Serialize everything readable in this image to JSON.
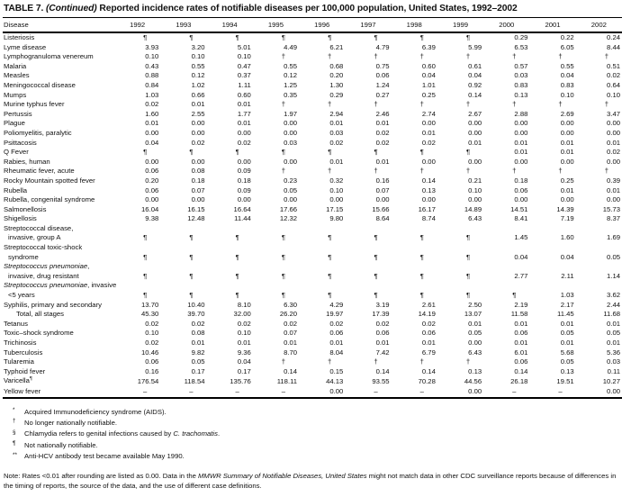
{
  "title": {
    "label": "TABLE 7. ",
    "continued": "(Continued) ",
    "rest": "Reported incidence rates of notifiable diseases per 100,000 population, United States, 1992–2002"
  },
  "table": {
    "disease_header": "Disease",
    "years": [
      "1992",
      "1993",
      "1994",
      "1995",
      "1996",
      "1997",
      "1998",
      "1999",
      "2000",
      "2001",
      "2002"
    ],
    "rows": [
      {
        "lines": [
          [
            {
              "t": "Listeriosis"
            }
          ]
        ],
        "values": [
          "¶",
          "¶",
          "¶",
          "¶",
          "¶",
          "¶",
          "¶",
          "¶",
          "0.29",
          "0.22",
          "0.24"
        ]
      },
      {
        "lines": [
          [
            {
              "t": "Lyme disease"
            }
          ]
        ],
        "values": [
          "3.93",
          "3.20",
          "5.01",
          "4.49",
          "6.21",
          "4.79",
          "6.39",
          "5.99",
          "6.53",
          "6.05",
          "8.44"
        ]
      },
      {
        "lines": [
          [
            {
              "t": "Lymphogranuloma venereum"
            }
          ]
        ],
        "values": [
          "0.10",
          "0.10",
          "0.10",
          "†",
          "†",
          "†",
          "†",
          "†",
          "†",
          "†",
          "†"
        ]
      },
      {
        "lines": [
          [
            {
              "t": "Malaria"
            }
          ]
        ],
        "values": [
          "0.43",
          "0.55",
          "0.47",
          "0.55",
          "0.68",
          "0.75",
          "0.60",
          "0.61",
          "0.57",
          "0.55",
          "0.51"
        ]
      },
      {
        "lines": [
          [
            {
              "t": "Measles"
            }
          ]
        ],
        "values": [
          "0.88",
          "0.12",
          "0.37",
          "0.12",
          "0.20",
          "0.06",
          "0.04",
          "0.04",
          "0.03",
          "0.04",
          "0.02"
        ]
      },
      {
        "lines": [
          [
            {
              "t": "Meningococcal disease"
            }
          ]
        ],
        "values": [
          "0.84",
          "1.02",
          "1.11",
          "1.25",
          "1.30",
          "1.24",
          "1.01",
          "0.92",
          "0.83",
          "0.83",
          "0.64"
        ]
      },
      {
        "lines": [
          [
            {
              "t": "Mumps"
            }
          ]
        ],
        "values": [
          "1.03",
          "0.66",
          "0.60",
          "0.35",
          "0.29",
          "0.27",
          "0.25",
          "0.14",
          "0.13",
          "0.10",
          "0.10"
        ]
      },
      {
        "lines": [
          [
            {
              "t": "Murine typhus fever"
            }
          ]
        ],
        "values": [
          "0.02",
          "0.01",
          "0.01",
          "†",
          "†",
          "†",
          "†",
          "†",
          "†",
          "†",
          "†"
        ]
      },
      {
        "lines": [
          [
            {
              "t": "Pertussis"
            }
          ]
        ],
        "values": [
          "1.60",
          "2.55",
          "1.77",
          "1.97",
          "2.94",
          "2.46",
          "2.74",
          "2.67",
          "2.88",
          "2.69",
          "3.47"
        ]
      },
      {
        "lines": [
          [
            {
              "t": "Plague"
            }
          ]
        ],
        "values": [
          "0.01",
          "0.00",
          "0.01",
          "0.00",
          "0.01",
          "0.01",
          "0.00",
          "0.00",
          "0.00",
          "0.00",
          "0.00"
        ]
      },
      {
        "lines": [
          [
            {
              "t": "Poliomyelitis, paralytic"
            }
          ]
        ],
        "values": [
          "0.00",
          "0.00",
          "0.00",
          "0.00",
          "0.03",
          "0.02",
          "0.01",
          "0.00",
          "0.00",
          "0.00",
          "0.00"
        ]
      },
      {
        "lines": [
          [
            {
              "t": "Psittacosis"
            }
          ]
        ],
        "values": [
          "0.04",
          "0.02",
          "0.02",
          "0.03",
          "0.02",
          "0.02",
          "0.02",
          "0.01",
          "0.01",
          "0.01",
          "0.01"
        ]
      },
      {
        "lines": [
          [
            {
              "t": "Q Fever"
            }
          ]
        ],
        "values": [
          "¶",
          "¶",
          "¶",
          "¶",
          "¶",
          "¶",
          "¶",
          "¶",
          "0.01",
          "0.01",
          "0.02"
        ]
      },
      {
        "lines": [
          [
            {
              "t": "Rabies, human"
            }
          ]
        ],
        "values": [
          "0.00",
          "0.00",
          "0.00",
          "0.00",
          "0.01",
          "0.01",
          "0.00",
          "0.00",
          "0.00",
          "0.00",
          "0.00"
        ]
      },
      {
        "lines": [
          [
            {
              "t": "Rheumatic fever, acute"
            }
          ]
        ],
        "values": [
          "0.06",
          "0.08",
          "0.09",
          "†",
          "†",
          "†",
          "†",
          "†",
          "†",
          "†",
          "†"
        ]
      },
      {
        "lines": [
          [
            {
              "t": "Rocky Mountain spotted fever"
            }
          ]
        ],
        "values": [
          "0.20",
          "0.18",
          "0.18",
          "0.23",
          "0.32",
          "0.16",
          "0.14",
          "0.21",
          "0.18",
          "0.25",
          "0.39"
        ]
      },
      {
        "lines": [
          [
            {
              "t": "Rubella"
            }
          ]
        ],
        "values": [
          "0.06",
          "0.07",
          "0.09",
          "0.05",
          "0.10",
          "0.07",
          "0.13",
          "0.10",
          "0.06",
          "0.01",
          "0.01"
        ]
      },
      {
        "lines": [
          [
            {
              "t": "Rubella, congenital syndrome"
            }
          ]
        ],
        "values": [
          "0.00",
          "0.00",
          "0.00",
          "0.00",
          "0.00",
          "0.00",
          "0.00",
          "0.00",
          "0.00",
          "0.00",
          "0.00"
        ]
      },
      {
        "lines": [
          [
            {
              "t": "Salmonellosis"
            }
          ]
        ],
        "values": [
          "16.04",
          "16.15",
          "16.64",
          "17.66",
          "17.15",
          "15.66",
          "16.17",
          "14.89",
          "14.51",
          "14.39",
          "15.73"
        ]
      },
      {
        "lines": [
          [
            {
              "t": "Shigellosis"
            }
          ]
        ],
        "values": [
          "9.38",
          "12.48",
          "11.44",
          "12.32",
          "9.80",
          "8.64",
          "8.74",
          "6.43",
          "8.41",
          "7.19",
          "8.37"
        ]
      },
      {
        "lines": [
          [
            {
              "t": "Streptococcal disease,"
            }
          ],
          [
            {
              "t": "invasive, group A"
            }
          ]
        ],
        "values": [
          "¶",
          "¶",
          "¶",
          "¶",
          "¶",
          "¶",
          "¶",
          "¶",
          "1.45",
          "1.60",
          "1.69"
        ]
      },
      {
        "lines": [
          [
            {
              "t": "Streptococcal toxic-shock"
            }
          ],
          [
            {
              "t": "syndrome"
            }
          ]
        ],
        "values": [
          "¶",
          "¶",
          "¶",
          "¶",
          "¶",
          "¶",
          "¶",
          "¶",
          "0.04",
          "0.04",
          "0.05"
        ]
      },
      {
        "lines": [
          [
            {
              "t": "Streptococcus pneumoniae",
              "i": true
            },
            {
              "t": ","
            }
          ],
          [
            {
              "t": "invasive, drug resistant"
            }
          ]
        ],
        "values": [
          "¶",
          "¶",
          "¶",
          "¶",
          "¶",
          "¶",
          "¶",
          "¶",
          "2.77",
          "2.11",
          "1.14"
        ]
      },
      {
        "lines": [
          [
            {
              "t": "Streptococcus pneumoniae",
              "i": true
            },
            {
              "t": ", invasive"
            }
          ],
          [
            {
              "t": "<5 years"
            }
          ]
        ],
        "values": [
          "¶",
          "¶",
          "¶",
          "¶",
          "¶",
          "¶",
          "¶",
          "¶",
          "¶",
          "1.03",
          "3.62"
        ]
      },
      {
        "lines": [
          [
            {
              "t": "Syphilis, primary and secondary"
            }
          ]
        ],
        "values": [
          "13.70",
          "10.40",
          "8.10",
          "6.30",
          "4.29",
          "3.19",
          "2.61",
          "2.50",
          "2.19",
          "2.17",
          "2.44"
        ]
      },
      {
        "lines": [
          [
            {
              "t": "Total, all stages"
            }
          ]
        ],
        "indent": true,
        "values": [
          "45.30",
          "39.70",
          "32.00",
          "26.20",
          "19.97",
          "17.39",
          "14.19",
          "13.07",
          "11.58",
          "11.45",
          "11.68"
        ]
      },
      {
        "lines": [
          [
            {
              "t": "Tetanus"
            }
          ]
        ],
        "values": [
          "0.02",
          "0.02",
          "0.02",
          "0.02",
          "0.02",
          "0.02",
          "0.02",
          "0.01",
          "0.01",
          "0.01",
          "0.01"
        ]
      },
      {
        "lines": [
          [
            {
              "t": "Toxic–shock syndrome"
            }
          ]
        ],
        "values": [
          "0.10",
          "0.08",
          "0.10",
          "0.07",
          "0.06",
          "0.06",
          "0.06",
          "0.05",
          "0.06",
          "0.05",
          "0.05"
        ]
      },
      {
        "lines": [
          [
            {
              "t": "Trichinosis"
            }
          ]
        ],
        "values": [
          "0.02",
          "0.01",
          "0.01",
          "0.01",
          "0.01",
          "0.01",
          "0.01",
          "0.00",
          "0.01",
          "0.01",
          "0.01"
        ]
      },
      {
        "lines": [
          [
            {
              "t": "Tuberculosis"
            }
          ]
        ],
        "values": [
          "10.46",
          "9.82",
          "9.36",
          "8.70",
          "8.04",
          "7.42",
          "6.79",
          "6.43",
          "6.01",
          "5.68",
          "5.36"
        ]
      },
      {
        "lines": [
          [
            {
              "t": "Tularemia"
            }
          ]
        ],
        "values": [
          "0.06",
          "0.05",
          "0.04",
          "†",
          "†",
          "†",
          "†",
          "†",
          "0.06",
          "0.05",
          "0.03"
        ]
      },
      {
        "lines": [
          [
            {
              "t": "Typhoid fever"
            }
          ]
        ],
        "values": [
          "0.16",
          "0.17",
          "0.17",
          "0.14",
          "0.15",
          "0.14",
          "0.14",
          "0.13",
          "0.14",
          "0.13",
          "0.11"
        ]
      },
      {
        "lines": [
          [
            {
              "t": "Varicella"
            },
            {
              "t": "¶",
              "sup": true
            }
          ]
        ],
        "values": [
          "176.54",
          "118.54",
          "135.76",
          "118.11",
          "44.13",
          "93.55",
          "70.28",
          "44.56",
          "26.18",
          "19.51",
          "10.27"
        ]
      },
      {
        "lines": [
          [
            {
              "t": "Yellow fever"
            }
          ]
        ],
        "values": [
          "–",
          "–",
          "–",
          "–",
          "0.00",
          "–",
          "–",
          "0.00",
          "–",
          "–",
          "0.00"
        ]
      }
    ]
  },
  "footnotes": [
    {
      "marker": "*",
      "segments": [
        {
          "t": "Acquired Immunodeficiency syndrome (AIDS)."
        }
      ]
    },
    {
      "marker": "†",
      "segments": [
        {
          "t": "No longer nationally notifiable."
        }
      ]
    },
    {
      "marker": "§",
      "segments": [
        {
          "t": "Chlamydia refers to genital infections caused by "
        },
        {
          "t": "C. trachomatis",
          "i": true
        },
        {
          "t": "."
        }
      ]
    },
    {
      "marker": "¶",
      "segments": [
        {
          "t": "Not nationally notifiable."
        }
      ]
    },
    {
      "marker": "**",
      "segments": [
        {
          "t": "Anti-HCV antibody test became available May 1990."
        }
      ]
    }
  ],
  "note": {
    "pre": "Note: Rates <0.01 after rounding are listed as 0.00.  Data in the ",
    "italic": "MMWR Summary of Notifiable Diseases, United States",
    "post": " might not match data in other CDC surveillance reports because of differences in the timing of reports, the source of the data, and the use of different case definitions."
  }
}
